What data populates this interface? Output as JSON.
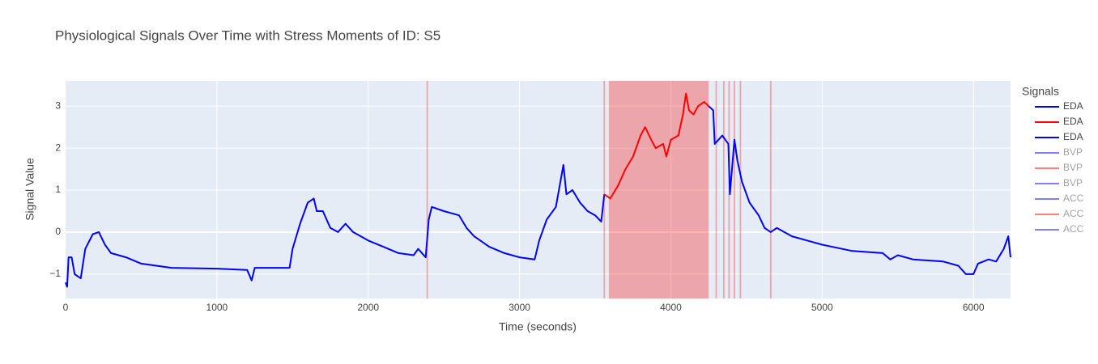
{
  "chart_data": {
    "type": "line",
    "title": "Physiological Signals Over Time with Stress Moments of ID: S5",
    "x_label": "Time (seconds)",
    "y_label": "Signal Value",
    "legend_title": "Signals",
    "xlim": [
      0,
      6245
    ],
    "ylim": [
      -1.58,
      3.6
    ],
    "xticks": [
      0,
      1000,
      2000,
      3000,
      4000,
      5000,
      6000
    ],
    "yticks": [
      {
        "value": -1,
        "label": "−1"
      },
      0,
      1,
      2,
      3
    ],
    "grid": true,
    "stress_color": "red",
    "stress_regions": [
      [
        2385,
        2395
      ],
      [
        3555,
        3565
      ],
      [
        3590,
        4250
      ],
      [
        4295,
        4305
      ],
      [
        4345,
        4355
      ],
      [
        4380,
        4390
      ],
      [
        4415,
        4425
      ],
      [
        4455,
        4465
      ],
      [
        4655,
        4665
      ]
    ],
    "series": [
      {
        "name": "EDA",
        "color": "blue",
        "x": [
          0,
          10,
          20,
          40,
          60,
          100,
          130,
          180,
          220,
          260,
          300,
          400,
          500,
          700,
          1000,
          1200,
          1230,
          1250,
          1400,
          1480,
          1500,
          1550,
          1600,
          1640,
          1660,
          1700,
          1750,
          1800,
          1850,
          1900,
          2000,
          2100,
          2200,
          2300,
          2330,
          2380,
          2400,
          2420,
          2500,
          2600,
          2650,
          2700,
          2800,
          2900,
          3000,
          3100,
          3130,
          3180,
          3240,
          3270,
          3290,
          3310,
          3350,
          3400,
          3450,
          3500,
          3540,
          3560
        ],
        "values": [
          -1.2,
          -1.3,
          -0.6,
          -0.6,
          -1.0,
          -1.1,
          -0.4,
          -0.05,
          0,
          -0.3,
          -0.5,
          -0.6,
          -0.75,
          -0.85,
          -0.87,
          -0.9,
          -1.15,
          -0.85,
          -0.85,
          -0.85,
          -0.4,
          0.2,
          0.7,
          0.8,
          0.5,
          0.5,
          0.1,
          0.0,
          0.2,
          0,
          -0.2,
          -0.35,
          -0.5,
          -0.55,
          -0.4,
          -0.6,
          0.3,
          0.6,
          0.5,
          0.4,
          0.1,
          -0.1,
          -0.35,
          -0.5,
          -0.6,
          -0.65,
          -0.2,
          0.3,
          0.6,
          1.2,
          1.6,
          0.9,
          1.0,
          0.7,
          0.5,
          0.4,
          0.25,
          0.9
        ]
      },
      {
        "name": "EDA",
        "color": "red",
        "x": [
          3560,
          3600,
          3650,
          3700,
          3750,
          3800,
          3830,
          3870,
          3900,
          3950,
          3970,
          4000,
          4050,
          4080,
          4100,
          4120,
          4150,
          4180,
          4220,
          4250
        ],
        "values": [
          0.9,
          0.8,
          1.1,
          1.5,
          1.8,
          2.3,
          2.5,
          2.2,
          2.0,
          2.1,
          1.8,
          2.2,
          2.3,
          2.8,
          3.3,
          2.9,
          2.8,
          3.0,
          3.1,
          3.0
        ]
      },
      {
        "name": "EDA",
        "color": "blue",
        "x": [
          4250,
          4280,
          4290,
          4340,
          4380,
          4390,
          4420,
          4440,
          4470,
          4520,
          4580,
          4620,
          4660,
          4700,
          4800,
          4900,
          5000,
          5200,
          5400,
          5450,
          5500,
          5600,
          5800,
          5900,
          5950,
          6000,
          6030,
          6100,
          6150,
          6200,
          6230,
          6245
        ],
        "values": [
          3.0,
          2.9,
          2.1,
          2.3,
          2.1,
          0.9,
          2.2,
          1.7,
          1.2,
          0.7,
          0.4,
          0.1,
          0,
          0.1,
          -0.1,
          -0.2,
          -0.3,
          -0.45,
          -0.5,
          -0.65,
          -0.55,
          -0.65,
          -0.7,
          -0.8,
          -1.0,
          -1.0,
          -0.75,
          -0.65,
          -0.7,
          -0.4,
          -0.1,
          -0.6
        ]
      },
      {
        "name": "BVP",
        "color": "blue",
        "visible": "legendonly"
      },
      {
        "name": "BVP",
        "color": "red",
        "visible": "legendonly"
      },
      {
        "name": "BVP",
        "color": "blue",
        "visible": "legendonly"
      },
      {
        "name": "ACC",
        "color": "blue",
        "visible": "legendonly"
      },
      {
        "name": "ACC",
        "color": "red",
        "visible": "legendonly"
      },
      {
        "name": "ACC",
        "color": "blue",
        "visible": "legendonly"
      }
    ]
  }
}
